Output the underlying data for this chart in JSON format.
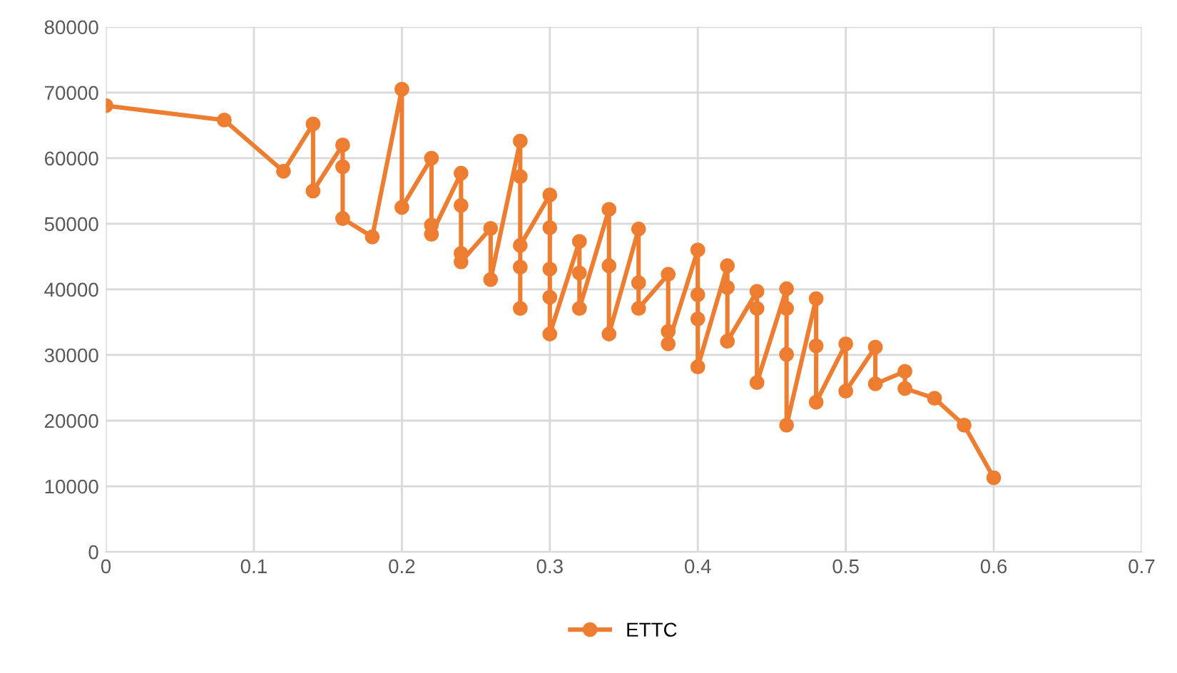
{
  "chart_data": {
    "type": "line",
    "series": [
      {
        "name": "ETTC",
        "color": "#ed7d31",
        "x": [
          0,
          0.08,
          0.12,
          0.14,
          0.14,
          0.16,
          0.16,
          0.16,
          0.18,
          0.2,
          0.2,
          0.22,
          0.22,
          0.22,
          0.24,
          0.24,
          0.24,
          0.24,
          0.26,
          0.26,
          0.28,
          0.28,
          0.28,
          0.28,
          0.28,
          0.3,
          0.3,
          0.3,
          0.3,
          0.3,
          0.32,
          0.32,
          0.32,
          0.34,
          0.34,
          0.34,
          0.36,
          0.36,
          0.36,
          0.38,
          0.38,
          0.38,
          0.4,
          0.4,
          0.4,
          0.4,
          0.42,
          0.42,
          0.42,
          0.44,
          0.44,
          0.44,
          0.46,
          0.46,
          0.46,
          0.46,
          0.48,
          0.48,
          0.48,
          0.5,
          0.5,
          0.52,
          0.52,
          0.54,
          0.54,
          0.56,
          0.58,
          0.6
        ],
        "values": [
          68000,
          65800,
          58000,
          65200,
          55000,
          62000,
          58700,
          50800,
          48000,
          70500,
          52500,
          60000,
          49800,
          48400,
          57700,
          52800,
          45500,
          44200,
          49300,
          41500,
          62600,
          57200,
          43400,
          37100,
          46700,
          54400,
          49400,
          43100,
          38800,
          33200,
          47300,
          42500,
          37100,
          52200,
          43600,
          33200,
          49200,
          41000,
          37100,
          42300,
          33600,
          31700,
          46000,
          39200,
          35500,
          28200,
          43600,
          40300,
          32100,
          39700,
          37100,
          25800,
          40100,
          37100,
          30100,
          19300,
          38600,
          31400,
          22800,
          31700,
          24500,
          31200,
          25600,
          27500,
          24900,
          23400,
          19300,
          11300
        ]
      }
    ],
    "xlim": [
      0,
      0.7
    ],
    "xticks": [
      0,
      0.1,
      0.2,
      0.3,
      0.4,
      0.5,
      0.6,
      0.7
    ],
    "ylim": [
      0,
      80000
    ],
    "yticks": [
      0,
      10000,
      20000,
      30000,
      40000,
      50000,
      60000,
      70000,
      80000
    ],
    "grid": true,
    "legend": "bottom",
    "marker": "circle",
    "line_style": "solid"
  }
}
